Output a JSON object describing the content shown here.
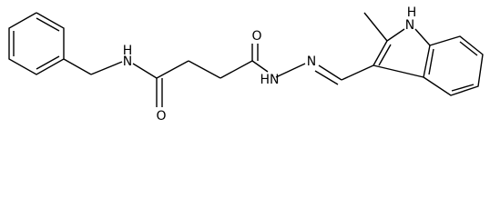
{
  "atoms": [
    {
      "label": "N"
    },
    {
      "label": "H"
    },
    {
      "label": "O"
    },
    {
      "label": "O"
    },
    {
      "label": "HN"
    },
    {
      "label": "N"
    },
    {
      "label": "N"
    },
    {
      "label": "H"
    }
  ]
}
